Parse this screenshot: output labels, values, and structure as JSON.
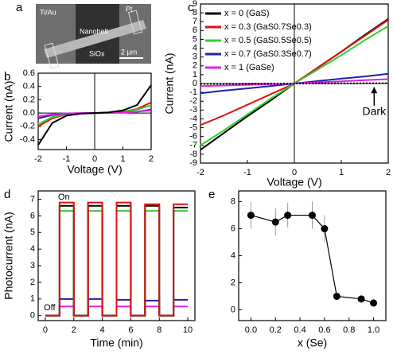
{
  "panel_a": {
    "label": "a",
    "electrode_left": "Ti/Au",
    "electrode_right": "Pt",
    "belt": "Nanobelt",
    "substrate": "SiOx",
    "scale_bar": "2 μm"
  },
  "chart_data": [
    {
      "type": "line",
      "panel_label": "b",
      "xlabel": "Voltage (V)",
      "ylabel": "Current (nA)",
      "x": [
        -2,
        -1.5,
        -1,
        -0.5,
        0,
        0.5,
        1,
        1.5,
        2
      ],
      "xlim": [
        -2,
        2
      ],
      "xticks": [
        -2,
        -1,
        0,
        1,
        2
      ],
      "ylim": [
        -0.55,
        0.6
      ],
      "yticks": [
        -0.4,
        -0.2,
        {
          "value": 0,
          "label": "0.0"
        },
        0.2,
        0.4,
        0.6
      ],
      "origin_lines": true,
      "series": [
        {
          "color": "#e01010",
          "values": [
            -0.2,
            -0.08,
            -0.02,
            -0.005,
            0,
            0.005,
            0.02,
            0.06,
            0.16
          ]
        },
        {
          "color": "#30d030",
          "values": [
            -0.17,
            -0.06,
            -0.02,
            -0.004,
            0,
            0.004,
            0.02,
            0.05,
            0.12
          ]
        },
        {
          "color": "#2020b0",
          "values": [
            -0.08,
            -0.03,
            -0.01,
            -0.002,
            0,
            0.002,
            0.01,
            0.02,
            0.05
          ]
        },
        {
          "color": "#e020e0",
          "values": [
            -0.05,
            -0.02,
            -0.005,
            0,
            0,
            0,
            0.005,
            0.02,
            0.04
          ]
        },
        {
          "color": "#000000",
          "values": [
            -0.48,
            -0.15,
            -0.04,
            -0.01,
            0,
            0.01,
            0.04,
            0.12,
            0.42
          ]
        }
      ]
    },
    {
      "type": "line",
      "panel_label": "c",
      "xlabel": "Voltage (V)",
      "ylabel": "Current (nA)",
      "x": [
        -2,
        -1.5,
        -1,
        -0.5,
        0,
        0.5,
        1,
        1.5,
        2
      ],
      "xlim": [
        -2,
        2
      ],
      "xticks": [
        -2,
        -1,
        0,
        1,
        2
      ],
      "ylim": [
        -9,
        9
      ],
      "yticks": [
        -9,
        -8,
        -7,
        -6,
        -5,
        -4,
        -3,
        -2,
        -1,
        0,
        1,
        2,
        3,
        4,
        5,
        6,
        7,
        8,
        9
      ],
      "origin_lines": true,
      "legend": "upper left",
      "annotation": "Dark",
      "series": [
        {
          "name": "x = 0 (GaS)",
          "color": "#000000",
          "values": [
            -7.5,
            -5.6,
            -3.7,
            -1.9,
            0,
            1.8,
            3.6,
            5.5,
            7.3
          ]
        },
        {
          "name": "x = 0.3 (GaS0.7Se0.3)",
          "color": "#e01010",
          "values": [
            -4.7,
            -3.6,
            -2.4,
            -1.2,
            0,
            1.8,
            3.6,
            5.4,
            7.2
          ]
        },
        {
          "name": "x = 0.5 (GaS0.5Se0.5)",
          "color": "#30d030",
          "values": [
            -7,
            -5.3,
            -3.5,
            -1.7,
            0,
            1.6,
            3.2,
            4.9,
            6.5
          ]
        },
        {
          "name": "x = 0.7 (GaS0.3Se0.7)",
          "color": "#2020b0",
          "values": [
            -1.1,
            -0.8,
            -0.55,
            -0.28,
            0,
            0.28,
            0.55,
            0.8,
            1.1
          ]
        },
        {
          "name": "x = 1 (GaSe)",
          "color": "#e020e0",
          "values": [
            -0.3,
            -0.22,
            -0.15,
            -0.08,
            0,
            0.12,
            0.25,
            0.38,
            0.5
          ]
        },
        {
          "color": "#000000",
          "dashed": true,
          "values": [
            -0.05,
            -0.04,
            -0.03,
            -0.01,
            0,
            0.01,
            0.02,
            0.03,
            0.04
          ]
        }
      ]
    },
    {
      "type": "line",
      "panel_label": "d",
      "xlabel": "Time (min)",
      "ylabel": "Photocurrent (nA)",
      "on_label": "On",
      "off_label": "Off",
      "x": [
        0,
        1,
        1,
        2,
        2,
        3,
        3,
        4,
        4,
        5,
        5,
        6,
        6,
        7,
        7,
        8,
        8,
        9,
        9,
        10
      ],
      "xlim": [
        -0.5,
        10.5
      ],
      "xticks": [
        0,
        2,
        4,
        6,
        8,
        10
      ],
      "ylim": [
        -0.3,
        7.5
      ],
      "yticks": [
        0,
        1,
        2,
        3,
        4,
        5,
        6,
        7
      ],
      "series": [
        {
          "color": "#e020e0",
          "values": [
            0,
            0,
            0.55,
            0.55,
            0,
            0,
            0.55,
            0.55,
            0,
            0,
            0.55,
            0.55,
            0,
            0,
            0.55,
            0.55,
            0,
            0,
            0.55,
            0.55
          ]
        },
        {
          "color": "#2020b0",
          "values": [
            0,
            0,
            1.0,
            1.0,
            0,
            0,
            1.0,
            1.0,
            0,
            0,
            0.95,
            0.95,
            0,
            0,
            0.9,
            0.9,
            0,
            0,
            0.95,
            0.95
          ]
        },
        {
          "color": "#30d030",
          "values": [
            0,
            0,
            6.3,
            6.3,
            0,
            0,
            6.3,
            6.3,
            0,
            0,
            6.3,
            6.3,
            0,
            0,
            6.3,
            6.3,
            0,
            0,
            6.3,
            6.3
          ]
        },
        {
          "color": "#000000",
          "values": [
            0,
            0,
            6.6,
            6.6,
            0,
            0,
            6.6,
            6.6,
            0,
            0,
            6.6,
            6.6,
            0,
            0,
            6.6,
            6.6,
            0,
            0,
            6.5,
            6.5
          ]
        },
        {
          "color": "#e01010",
          "values": [
            0,
            0,
            6.8,
            6.8,
            0,
            0,
            6.8,
            6.8,
            0,
            0,
            6.8,
            6.8,
            0,
            0,
            6.7,
            6.7,
            0,
            0,
            6.7,
            6.7
          ]
        }
      ]
    },
    {
      "type": "scatter",
      "panel_label": "e",
      "xlabel": "x (Se)",
      "x": [
        0,
        0.2,
        0.3,
        0.5,
        0.6,
        0.7,
        0.9,
        1.0
      ],
      "xlim": [
        -0.1,
        1.1
      ],
      "xticks": [
        {
          "value": 0,
          "label": "0.0"
        },
        0.2,
        0.4,
        0.6,
        0.8,
        {
          "value": 1,
          "label": "1.0"
        }
      ],
      "ylim": [
        -0.8,
        8.8
      ],
      "yticks": [
        0,
        2,
        4,
        6,
        8
      ],
      "connect": true,
      "series": [
        {
          "color": "#000000",
          "values": [
            7,
            6.5,
            7,
            7,
            6,
            1,
            0.8,
            0.5
          ],
          "errors": [
            1,
            1,
            0.9,
            1,
            1,
            0.1,
            0.2,
            0.1
          ]
        }
      ]
    }
  ]
}
